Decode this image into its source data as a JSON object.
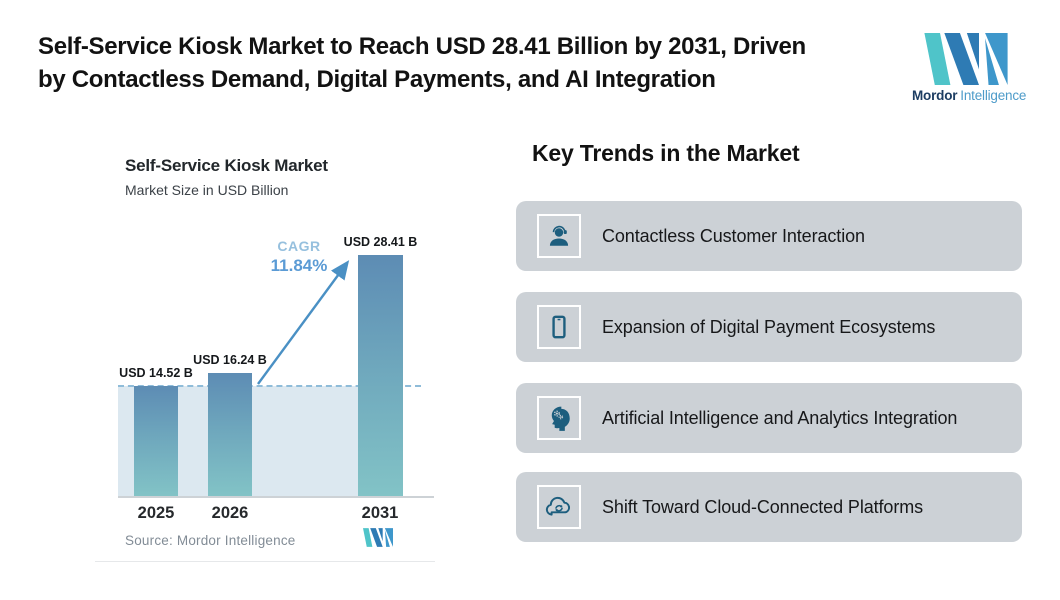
{
  "header": {
    "headline_lines": [
      "Self-Service Kiosk Market to Reach USD 28.41 Billion by 2031, Driven",
      "by Contactless Demand, Digital Payments, and AI Integration"
    ]
  },
  "brand": {
    "name_bold": "Mordor",
    "name_light": "Intelligence"
  },
  "chart_data": {
    "type": "bar",
    "title": "Self-Service Kiosk Market",
    "subtitle": "Market Size in USD Billion",
    "categories": [
      "2025",
      "2026",
      "2031"
    ],
    "values": [
      14.52,
      16.24,
      28.41
    ],
    "value_labels": [
      "USD 14.52 B",
      "USD 16.24 B",
      "USD 28.41 B"
    ],
    "cagr": {
      "label": "CAGR",
      "value": "11.84%"
    },
    "baseline_dashed_at": 14.52,
    "ylim": [
      0,
      30
    ],
    "grid": false,
    "legend": false,
    "source": "Source: Mordor Intelligence"
  },
  "trends": {
    "heading": "Key Trends in the Market",
    "items": [
      {
        "icon": "headset-person-icon",
        "label": "Contactless Customer Interaction"
      },
      {
        "icon": "smartphone-icon",
        "label": "Expansion of Digital Payment Ecosystems"
      },
      {
        "icon": "ai-head-icon",
        "label": "Artificial Intelligence and Analytics Integration"
      },
      {
        "icon": "cloud-sync-icon",
        "label": "Shift Toward Cloud-Connected Platforms"
      }
    ]
  },
  "colors": {
    "card_gray": "#ccd1d6",
    "trend_icon": "#1d5e7e",
    "bar_gradient_top": "#5d8cb4",
    "bar_gradient_bottom": "#82c3c6",
    "plot_highlight": "#dce8f0",
    "dashed_line": "#8fbcd9",
    "cagr_blue": "#5b9bd5",
    "arrow_blue": "#4a90c4",
    "brand_teal": "#4fc4c9",
    "brand_blue_dark": "#2e7bb4",
    "brand_blue": "#3e97cb"
  }
}
